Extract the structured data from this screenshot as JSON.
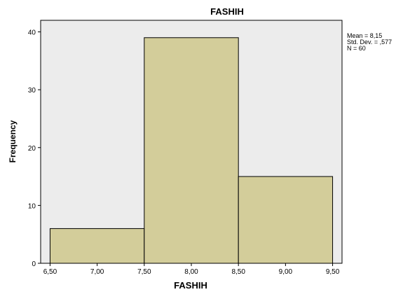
{
  "chart_data": {
    "type": "bar",
    "title": "FASHIH",
    "xlabel": "FASHIH",
    "ylabel": "Frequency",
    "bins": [
      {
        "start": 6.5,
        "end": 7.5,
        "value": 6
      },
      {
        "start": 7.5,
        "end": 8.5,
        "value": 39
      },
      {
        "start": 8.5,
        "end": 9.5,
        "value": 15
      }
    ],
    "xlim": [
      6.4,
      9.6
    ],
    "ylim": [
      0,
      42
    ],
    "xticks": [
      6.5,
      7.0,
      7.5,
      8.0,
      8.5,
      9.0,
      9.5
    ],
    "xtick_labels": [
      "6,50",
      "7,00",
      "7,50",
      "8,00",
      "8,50",
      "9,00",
      "9,50"
    ],
    "yticks": [
      0,
      10,
      20,
      30,
      40
    ],
    "ytick_labels": [
      "0",
      "10",
      "20",
      "30",
      "40"
    ],
    "grid": false,
    "stats": {
      "mean": "Mean = 8,15",
      "std_dev": "Std. Dev. = ,577",
      "n": "N = 60"
    },
    "colors": {
      "plot_background": "#ececec",
      "bar_fill": "#d3cd9a",
      "axis": "#000000"
    }
  }
}
